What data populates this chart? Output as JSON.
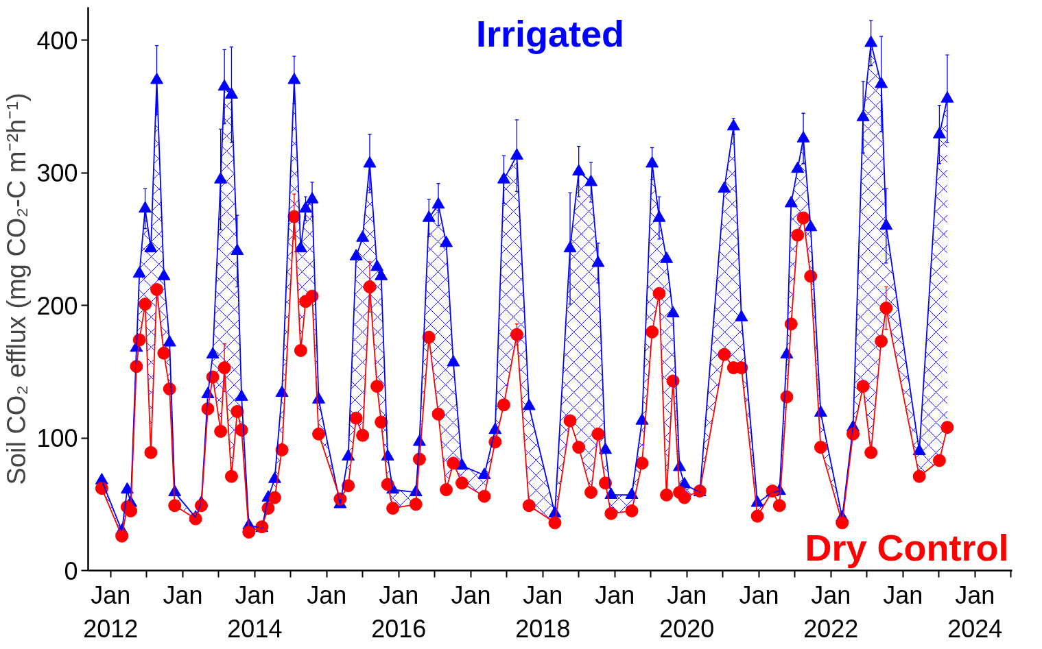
{
  "chart_data": {
    "type": "line",
    "ylabel": "Soil CO₂ efflux (mg CO₂-C m⁻²h⁻¹)",
    "x": [
      "2011-11-17",
      "2012-02-27",
      "2012-03-25",
      "2012-04-12",
      "2012-05-11",
      "2012-05-26",
      "2012-06-24",
      "2012-07-23",
      "2012-08-22",
      "2012-09-27",
      "2012-10-26",
      "2012-11-21",
      "2013-03-07",
      "2013-04-05",
      "2013-05-08",
      "2013-06-02",
      "2013-07-12",
      "2013-07-31",
      "2013-09-05",
      "2013-10-04",
      "2013-10-26",
      "2013-12-02",
      "2014-02-06",
      "2014-03-10",
      "2014-04-12",
      "2014-05-19",
      "2014-07-20",
      "2014-08-22",
      "2014-09-16",
      "2014-10-19",
      "2014-11-21",
      "2015-03-10",
      "2015-04-20",
      "2015-05-30",
      "2015-07-02",
      "2015-08-07",
      "2015-09-13",
      "2015-10-04",
      "2015-11-06",
      "2015-12-02",
      "2016-03-28",
      "2016-04-15",
      "2016-06-02",
      "2016-07-20",
      "2016-08-29",
      "2016-10-04",
      "2016-11-17",
      "2017-03-10",
      "2017-05-04",
      "2017-06-17",
      "2017-08-22",
      "2017-10-23",
      "2018-03-03",
      "2018-05-19",
      "2018-07-02",
      "2018-09-02",
      "2018-10-08",
      "2018-11-14",
      "2018-12-13",
      "2019-03-28",
      "2019-05-19",
      "2019-07-09",
      "2019-08-14",
      "2019-09-20",
      "2019-10-23",
      "2019-11-25",
      "2019-12-20",
      "2020-03-07",
      "2020-07-09",
      "2020-08-25",
      "2020-10-04",
      "2020-12-24",
      "2021-03-10",
      "2021-04-15",
      "2021-05-22",
      "2021-06-13",
      "2021-07-16",
      "2021-08-14",
      "2021-09-20",
      "2021-11-10",
      "2022-02-27",
      "2022-04-23",
      "2022-06-13",
      "2022-07-23",
      "2022-09-13",
      "2022-10-08",
      "2023-03-25",
      "2023-07-05",
      "2023-08-14"
    ],
    "series": [
      {
        "name": "Irrigated",
        "color": "#0000ff",
        "marker": "triangle",
        "values": [
          68,
          30,
          61,
          51,
          168,
          224,
          273,
          243,
          370,
          222,
          172,
          59,
          40,
          51,
          133,
          163,
          295,
          365,
          359,
          241,
          131,
          34,
          32,
          55,
          69,
          134,
          370,
          243,
          273,
          280,
          129,
          50,
          86,
          237,
          251,
          307,
          229,
          222,
          86,
          61,
          59,
          97,
          266,
          276,
          247,
          157,
          79,
          72,
          106,
          295,
          313,
          124,
          43,
          243,
          301,
          293,
          232,
          91,
          57,
          57,
          113,
          307,
          266,
          235,
          194,
          78,
          65,
          59,
          288,
          335,
          191,
          51,
          59,
          60,
          163,
          277,
          303,
          326,
          259,
          119,
          40,
          108,
          342,
          398,
          367,
          260,
          90,
          329,
          356
        ],
        "errors": [
          null,
          null,
          null,
          null,
          null,
          null,
          15,
          null,
          26,
          null,
          null,
          null,
          null,
          null,
          null,
          null,
          38,
          28,
          36,
          27,
          null,
          null,
          null,
          null,
          null,
          null,
          18,
          null,
          9,
          13,
          null,
          null,
          null,
          null,
          null,
          22,
          null,
          null,
          null,
          null,
          null,
          null,
          14,
          16,
          null,
          null,
          null,
          null,
          null,
          18,
          27,
          null,
          null,
          42,
          19,
          15,
          15,
          null,
          null,
          null,
          null,
          12,
          16,
          null,
          null,
          null,
          null,
          null,
          null,
          6,
          null,
          null,
          null,
          null,
          null,
          null,
          null,
          19,
          null,
          null,
          null,
          null,
          27,
          17,
          36,
          28,
          null,
          22,
          33
        ],
        "lower": [
          62,
          26,
          48,
          45,
          154,
          174,
          201,
          89,
          212,
          164,
          137,
          49,
          39,
          49,
          122,
          146,
          105,
          153,
          71,
          120,
          106,
          29,
          33,
          47,
          55,
          91,
          267,
          166,
          203,
          207,
          103,
          54,
          64,
          115,
          102,
          214,
          139,
          112,
          65,
          47,
          50,
          84,
          176,
          118,
          61,
          81,
          66,
          56,
          97,
          125,
          178,
          49,
          36,
          113,
          93,
          59,
          103,
          66,
          43,
          45,
          81,
          180,
          209,
          57,
          143,
          59,
          55,
          60,
          163,
          153,
          153,
          41,
          60,
          49,
          131,
          186,
          253,
          266,
          222,
          93,
          36,
          103,
          139,
          89,
          173,
          198,
          71,
          83,
          108
        ],
        "upper": [
          68,
          30,
          61,
          51,
          168,
          224,
          273,
          243,
          370,
          222,
          172,
          59,
          40,
          51,
          133,
          163,
          295,
          365,
          359,
          241,
          131,
          34,
          32,
          55,
          69,
          134,
          370,
          243,
          273,
          280,
          129,
          50,
          86,
          237,
          251,
          307,
          229,
          222,
          86,
          61,
          59,
          97,
          266,
          276,
          247,
          157,
          79,
          72,
          106,
          295,
          313,
          124,
          43,
          243,
          301,
          293,
          232,
          91,
          57,
          57,
          113,
          307,
          266,
          235,
          194,
          78,
          65,
          59,
          288,
          335,
          191,
          51,
          59,
          60,
          163,
          277,
          303,
          326,
          259,
          119,
          40,
          108,
          342,
          398,
          367,
          260,
          90,
          329,
          356
        ]
      },
      {
        "name": "Dry Control",
        "color": "#ff0000",
        "marker": "circle",
        "values": [
          62,
          26,
          48,
          45,
          154,
          174,
          201,
          89,
          212,
          164,
          137,
          49,
          39,
          49,
          122,
          146,
          105,
          153,
          71,
          120,
          106,
          29,
          33,
          47,
          55,
          91,
          267,
          166,
          203,
          207,
          103,
          54,
          64,
          115,
          102,
          214,
          139,
          112,
          65,
          47,
          50,
          84,
          176,
          118,
          61,
          81,
          66,
          56,
          97,
          125,
          178,
          49,
          36,
          113,
          93,
          59,
          103,
          66,
          43,
          45,
          81,
          180,
          209,
          57,
          143,
          59,
          55,
          60,
          163,
          153,
          153,
          41,
          60,
          49,
          131,
          186,
          253,
          266,
          222,
          93,
          36,
          103,
          139,
          89,
          173,
          198,
          71,
          83,
          108
        ],
        "errors": [
          null,
          null,
          null,
          null,
          null,
          null,
          null,
          null,
          null,
          null,
          null,
          null,
          null,
          null,
          null,
          null,
          null,
          18,
          null,
          null,
          null,
          null,
          null,
          null,
          null,
          null,
          17,
          null,
          null,
          null,
          null,
          null,
          null,
          null,
          null,
          19,
          null,
          null,
          null,
          null,
          null,
          null,
          null,
          null,
          null,
          null,
          null,
          null,
          null,
          null,
          8,
          null,
          null,
          null,
          null,
          null,
          null,
          null,
          null,
          null,
          null,
          null,
          null,
          null,
          null,
          null,
          null,
          null,
          null,
          null,
          null,
          null,
          null,
          null,
          null,
          null,
          null,
          null,
          null,
          null,
          null,
          null,
          null,
          null,
          null,
          16,
          null,
          null,
          null
        ]
      }
    ],
    "xlim": [
      "2011-09-09",
      "2024-07-08"
    ],
    "xticks": [
      {
        "value": "2012-01-01",
        "label": "Jan\n2012"
      },
      {
        "value": "2012-07-01",
        "label": null
      },
      {
        "value": "2013-01-01",
        "label": "Jan"
      },
      {
        "value": "2013-07-01",
        "label": null
      },
      {
        "value": "2014-01-01",
        "label": "Jan\n2014"
      },
      {
        "value": "2014-07-01",
        "label": null
      },
      {
        "value": "2015-01-01",
        "label": "Jan"
      },
      {
        "value": "2015-07-01",
        "label": null
      },
      {
        "value": "2016-01-01",
        "label": "Jan\n2016"
      },
      {
        "value": "2016-07-01",
        "label": null
      },
      {
        "value": "2017-01-01",
        "label": "Jan"
      },
      {
        "value": "2017-07-01",
        "label": null
      },
      {
        "value": "2018-01-01",
        "label": "Jan\n2018"
      },
      {
        "value": "2018-07-01",
        "label": null
      },
      {
        "value": "2019-01-01",
        "label": "Jan"
      },
      {
        "value": "2019-07-01",
        "label": null
      },
      {
        "value": "2020-01-01",
        "label": "Jan\n2020"
      },
      {
        "value": "2020-07-01",
        "label": null
      },
      {
        "value": "2021-01-01",
        "label": "Jan"
      },
      {
        "value": "2021-07-01",
        "label": null
      },
      {
        "value": "2022-01-01",
        "label": "Jan\n2022"
      },
      {
        "value": "2022-07-01",
        "label": null
      },
      {
        "value": "2023-01-01",
        "label": "Jan"
      },
      {
        "value": "2023-07-01",
        "label": null
      },
      {
        "value": "2024-01-01",
        "label": "Jan\n2024"
      },
      {
        "value": "2024-07-01",
        "label": null
      }
    ],
    "ylim": [
      0,
      425
    ],
    "yticks": [
      0,
      100,
      200,
      300,
      400
    ],
    "grid": false
  }
}
